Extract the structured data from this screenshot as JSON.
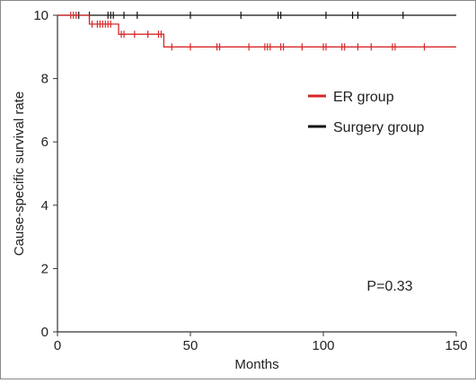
{
  "chart_data": {
    "type": "line",
    "subtype": "kaplan-meier",
    "title": "",
    "xlabel": "Months",
    "ylabel": "Cause-specific survival rate",
    "xlim": [
      0,
      150
    ],
    "ylim": [
      0,
      10
    ],
    "x_ticks": [
      0,
      50,
      100,
      150
    ],
    "y_ticks": [
      0,
      2,
      4,
      6,
      8,
      10
    ],
    "grid": false,
    "legend_position": "right",
    "annotation": "P=0.33",
    "series": [
      {
        "name": "ER group",
        "color": "#d62728",
        "steps": [
          [
            0,
            10
          ],
          [
            12,
            10
          ],
          [
            12,
            9.72
          ],
          [
            23,
            9.72
          ],
          [
            23,
            9.4
          ],
          [
            40,
            9.4
          ],
          [
            40,
            9.0
          ],
          [
            150,
            9.0
          ]
        ],
        "censored": [
          [
            5,
            10
          ],
          [
            6,
            10
          ],
          [
            7,
            10
          ],
          [
            13,
            9.72
          ],
          [
            15,
            9.72
          ],
          [
            16,
            9.72
          ],
          [
            17,
            9.72
          ],
          [
            18,
            9.72
          ],
          [
            19,
            9.72
          ],
          [
            20,
            9.72
          ],
          [
            24,
            9.4
          ],
          [
            25,
            9.4
          ],
          [
            29,
            9.4
          ],
          [
            34,
            9.4
          ],
          [
            38,
            9.4
          ],
          [
            39,
            9.4
          ],
          [
            43,
            9.0
          ],
          [
            50,
            9.0
          ],
          [
            60,
            9.0
          ],
          [
            61,
            9.0
          ],
          [
            72,
            9.0
          ],
          [
            78,
            9.0
          ],
          [
            79,
            9.0
          ],
          [
            80,
            9.0
          ],
          [
            84,
            9.0
          ],
          [
            85,
            9.0
          ],
          [
            92,
            9.0
          ],
          [
            100,
            9.0
          ],
          [
            101,
            9.0
          ],
          [
            107,
            9.0
          ],
          [
            108,
            9.0
          ],
          [
            113,
            9.0
          ],
          [
            118,
            9.0
          ],
          [
            126,
            9.0
          ],
          [
            127,
            9.0
          ],
          [
            138,
            9.0
          ]
        ]
      },
      {
        "name": "Surgery group",
        "color": "#111111",
        "steps": [
          [
            0,
            10
          ],
          [
            150,
            10
          ]
        ],
        "censored": [
          [
            8,
            10
          ],
          [
            12,
            10
          ],
          [
            19,
            10
          ],
          [
            20,
            10
          ],
          [
            21,
            10
          ],
          [
            25,
            10
          ],
          [
            30,
            10
          ],
          [
            50,
            10
          ],
          [
            69,
            10
          ],
          [
            83,
            10
          ],
          [
            84,
            10
          ],
          [
            101,
            10
          ],
          [
            111,
            10
          ],
          [
            113,
            10
          ],
          [
            130,
            10
          ]
        ]
      }
    ]
  }
}
